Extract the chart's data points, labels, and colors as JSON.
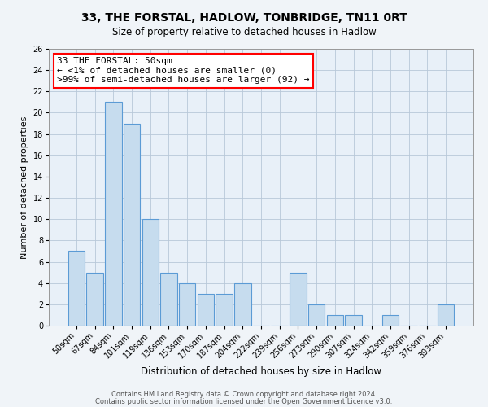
{
  "title": "33, THE FORSTAL, HADLOW, TONBRIDGE, TN11 0RT",
  "subtitle": "Size of property relative to detached houses in Hadlow",
  "xlabel": "Distribution of detached houses by size in Hadlow",
  "ylabel": "Number of detached properties",
  "bar_color": "#c6dcee",
  "bar_edge_color": "#5b9bd5",
  "categories": [
    "50sqm",
    "67sqm",
    "84sqm",
    "101sqm",
    "119sqm",
    "136sqm",
    "153sqm",
    "170sqm",
    "187sqm",
    "204sqm",
    "222sqm",
    "239sqm",
    "256sqm",
    "273sqm",
    "290sqm",
    "307sqm",
    "324sqm",
    "342sqm",
    "359sqm",
    "376sqm",
    "393sqm"
  ],
  "values": [
    7,
    5,
    21,
    19,
    10,
    5,
    4,
    3,
    3,
    4,
    0,
    0,
    5,
    2,
    1,
    1,
    0,
    1,
    0,
    0,
    2
  ],
  "ylim": [
    0,
    26
  ],
  "yticks": [
    0,
    2,
    4,
    6,
    8,
    10,
    12,
    14,
    16,
    18,
    20,
    22,
    24,
    26
  ],
  "annotation_box_text": "33 THE FORSTAL: 50sqm\n← <1% of detached houses are smaller (0)\n>99% of semi-detached houses are larger (92) →",
  "footer_line1": "Contains HM Land Registry data © Crown copyright and database right 2024.",
  "footer_line2": "Contains public sector information licensed under the Open Government Licence v3.0.",
  "background_color": "#f0f4f8",
  "plot_bg_color": "#e8f0f8",
  "grid_color": "#b8c8d8",
  "title_fontsize": 10,
  "subtitle_fontsize": 8.5,
  "xlabel_fontsize": 8.5,
  "ylabel_fontsize": 8,
  "tick_fontsize": 7,
  "annotation_fontsize": 8,
  "footer_fontsize": 6
}
